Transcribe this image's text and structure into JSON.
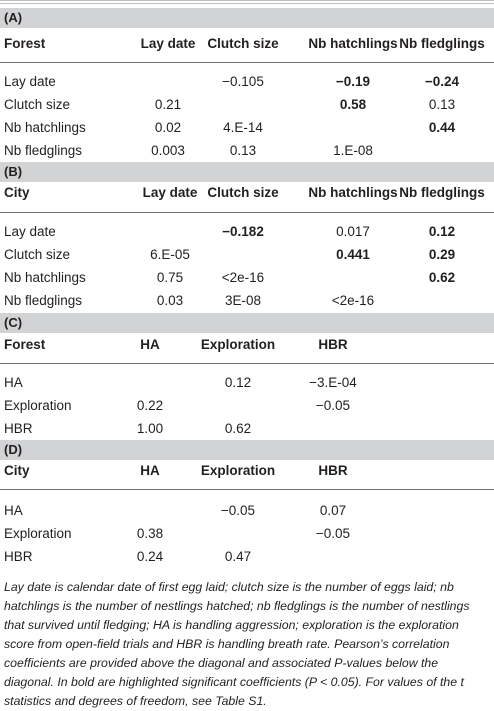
{
  "sections": [
    {
      "label": "(A)",
      "headers": [
        "Forest",
        "Lay date",
        "Clutch size",
        "Nb hatchlings",
        "Nb fledglings"
      ],
      "rows": [
        {
          "label": "Lay date",
          "cells": [
            "",
            "−0.105",
            "−0.19",
            "−0.24"
          ],
          "bold": [
            false,
            false,
            true,
            true
          ]
        },
        {
          "label": "Clutch size",
          "cells": [
            "0.21",
            "",
            "0.58",
            "0.13"
          ],
          "bold": [
            false,
            false,
            true,
            false
          ]
        },
        {
          "label": "Nb hatchlings",
          "cells": [
            "0.02",
            "4.E-14",
            "",
            "0.44"
          ],
          "bold": [
            false,
            false,
            false,
            true
          ]
        },
        {
          "label": "Nb fledglings",
          "cells": [
            "0.003",
            "0.13",
            "1.E-08",
            ""
          ],
          "bold": [
            false,
            false,
            false,
            false
          ]
        }
      ]
    },
    {
      "label": "(B)",
      "headers": [
        "City",
        "Lay date",
        "Clutch size",
        "Nb hatchlings",
        "Nb fledglings"
      ],
      "rows": [
        {
          "label": "Lay date",
          "cells": [
            "",
            "−0.182",
            "0.017",
            "0.12"
          ],
          "bold": [
            false,
            true,
            false,
            true
          ]
        },
        {
          "label": "Clutch size",
          "cells": [
            "6.E-05",
            "",
            "0.441",
            "0.29"
          ],
          "bold": [
            false,
            false,
            true,
            true
          ]
        },
        {
          "label": "Nb hatchlings",
          "cells": [
            "0.75",
            "<2e-16",
            "",
            "0.62"
          ],
          "bold": [
            false,
            false,
            false,
            true
          ]
        },
        {
          "label": "Nb fledglings",
          "cells": [
            "0.03",
            "3E-08",
            "<2e-16",
            ""
          ],
          "bold": [
            false,
            false,
            false,
            false
          ]
        }
      ]
    },
    {
      "label": "(C)",
      "headers": [
        "Forest",
        "HA",
        "Exploration",
        "HBR"
      ],
      "rows": [
        {
          "label": "HA",
          "cells": [
            "",
            "0.12",
            "−3.E-04"
          ],
          "bold": [
            false,
            false,
            false
          ]
        },
        {
          "label": "Exploration",
          "cells": [
            "0.22",
            "",
            "−0.05"
          ],
          "bold": [
            false,
            false,
            false
          ]
        },
        {
          "label": "HBR",
          "cells": [
            "1.00",
            "0.62",
            ""
          ],
          "bold": [
            false,
            false,
            false
          ]
        }
      ]
    },
    {
      "label": "(D)",
      "headers": [
        "City",
        "HA",
        "Exploration",
        "HBR"
      ],
      "rows": [
        {
          "label": "HA",
          "cells": [
            "",
            "−0.05",
            "0.07"
          ],
          "bold": [
            false,
            false,
            false
          ]
        },
        {
          "label": "Exploration",
          "cells": [
            "0.38",
            "",
            "−0.05"
          ],
          "bold": [
            false,
            false,
            false
          ]
        },
        {
          "label": "HBR",
          "cells": [
            "0.24",
            "0.47",
            ""
          ],
          "bold": [
            false,
            false,
            false
          ]
        }
      ]
    }
  ],
  "footnote": "Lay date is calendar date of first egg laid; clutch size is the number of eggs laid; nb hatchlings is the number of nestlings hatched; nb fledglings is the number of nestlings that survived until fledging; HA is handling aggression; exploration is the exploration score from open-field trials and HBR is handling breath rate. Pearson’s correlation coefficients are provided above the diagonal and associated P-values below the diagonal. In bold are highlighted significant coefficients (P < 0.05). For values of the t statistics and degrees of freedom, see Table S1.",
  "colors": {
    "section_bar": "#d1d3d4",
    "text": "#231f20",
    "rule": "#6d6e71"
  }
}
